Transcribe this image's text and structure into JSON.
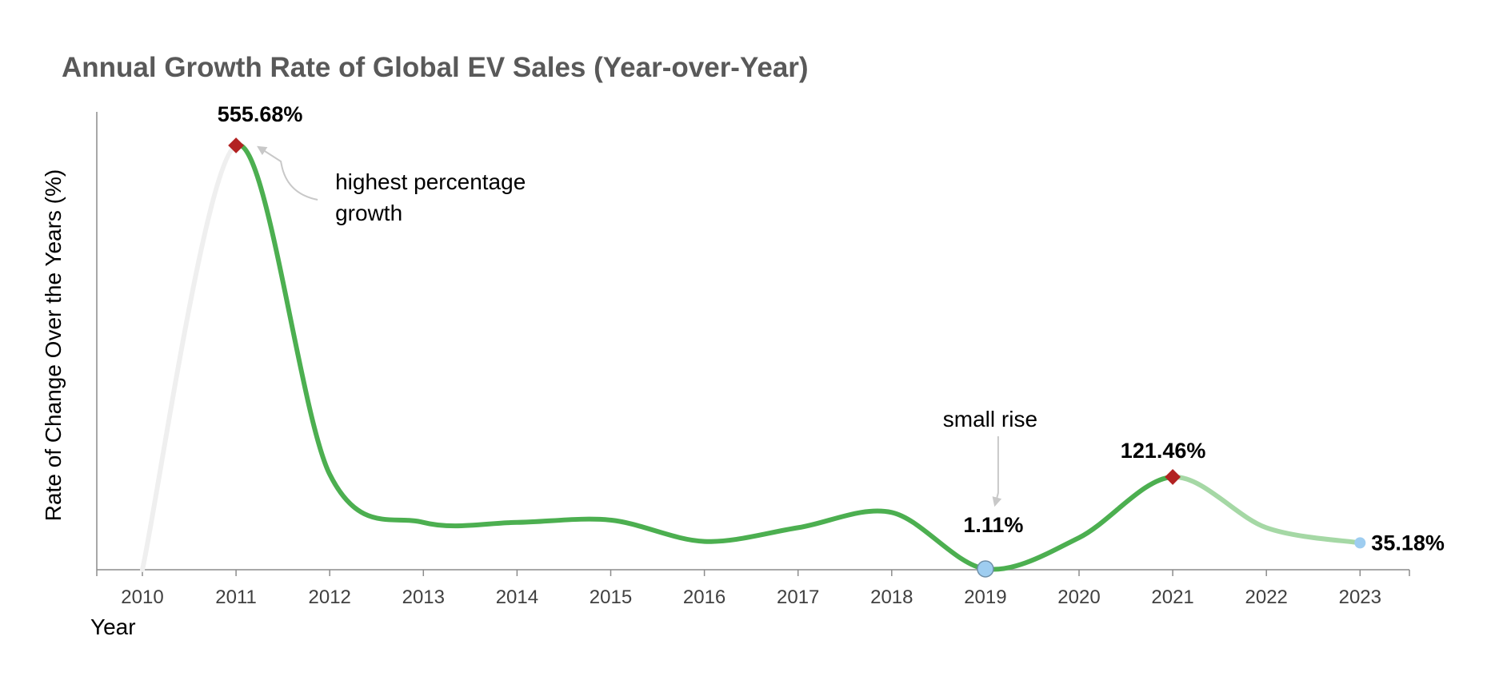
{
  "chart_data": {
    "type": "line",
    "title": "Annual Growth Rate of Global EV Sales (Year-over-Year)",
    "xlabel": "Year",
    "ylabel": "Rate of Change Over the Years (%)",
    "x": [
      "2010",
      "2011",
      "2012",
      "2013",
      "2014",
      "2015",
      "2016",
      "2017",
      "2018",
      "2019",
      "2020",
      "2021",
      "2022",
      "2023"
    ],
    "values": [
      0,
      555.68,
      125,
      62,
      62,
      65,
      37,
      55,
      75,
      1.11,
      42,
      121.46,
      55,
      35.18
    ],
    "ylim": [
      0,
      600
    ],
    "grid": false,
    "smooth": true,
    "colors": {
      "lead_in": "#efefef",
      "main_line": "#4caf50",
      "tail_line": "#a5d8a5",
      "peak_marker": "#b22222",
      "low_marker": "#9ecdf0",
      "arrow": "#c8c8c8",
      "axis": "#8c8c8c"
    },
    "data_labels": [
      {
        "year": "2011",
        "text": "555.68%",
        "marker": "peak"
      },
      {
        "year": "2019",
        "text": "1.11%",
        "marker": "low"
      },
      {
        "year": "2021",
        "text": "121.46%",
        "marker": "peak"
      },
      {
        "year": "2023",
        "text": "35.18%",
        "marker": "low"
      }
    ],
    "annotations": [
      {
        "year": "2011",
        "text_lines": [
          "highest percentage",
          "growth"
        ]
      },
      {
        "year": "2019",
        "text_lines": [
          "small rise"
        ]
      }
    ]
  }
}
